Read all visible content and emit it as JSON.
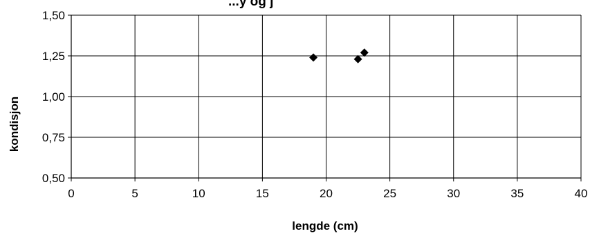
{
  "chart_data": {
    "type": "scatter",
    "title": "...y og j",
    "xlabel": "lengde (cm)",
    "ylabel": "kondisjon",
    "xlim": [
      0,
      40
    ],
    "ylim": [
      0.5,
      1.5
    ],
    "x_ticks": [
      0,
      5,
      10,
      15,
      20,
      25,
      30,
      35,
      40
    ],
    "x_tick_labels": [
      "0",
      "5",
      "10",
      "15",
      "20",
      "25",
      "30",
      "35",
      "40"
    ],
    "y_ticks": [
      0.5,
      0.75,
      1.0,
      1.25,
      1.5
    ],
    "y_tick_labels": [
      "0,50",
      "0,75",
      "1,00",
      "1,25",
      "1,50"
    ],
    "grid": true,
    "marker": "diamond",
    "marker_color": "#000000",
    "series": [
      {
        "x": [
          19.0,
          22.5,
          23.0
        ],
        "y": [
          1.24,
          1.23,
          1.27
        ]
      }
    ]
  }
}
